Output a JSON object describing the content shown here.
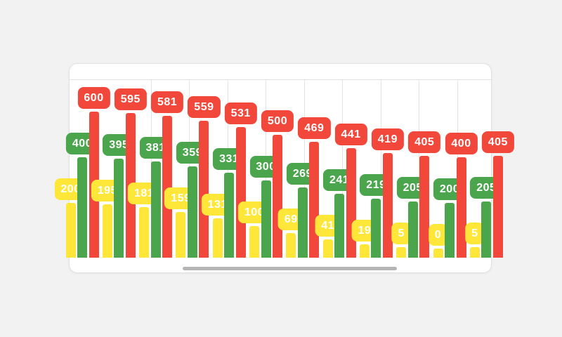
{
  "page": {
    "background_color": "#f2f2f3"
  },
  "card": {
    "background_color": "#ffffff",
    "border_color": "#e1e1e1"
  },
  "chart_data": {
    "type": "bar",
    "title": "",
    "xlabel": "",
    "ylabel": "",
    "x_tick_labels": [],
    "y_tick_labels": [],
    "series": [
      {
        "name": "yellow",
        "color": "#ffe73a",
        "values": [
          200,
          195,
          181,
          159,
          131,
          100,
          69,
          41,
          19,
          5,
          0,
          5
        ]
      },
      {
        "name": "green",
        "color": "#4aa54d",
        "values": [
          400,
          395,
          381,
          359,
          331,
          300,
          269,
          241,
          219,
          205,
          200,
          205
        ]
      },
      {
        "name": "red",
        "color": "#f2483c",
        "values": [
          600,
          595,
          581,
          559,
          531,
          500,
          469,
          441,
          419,
          405,
          400,
          405
        ]
      }
    ],
    "value_labels": "badges above each bar, white text on series color",
    "layout": {
      "legend": "none",
      "grid": "vertical lines only",
      "gridline_count": 9,
      "baseline_axis_line": false,
      "horizontal_scroll_thumb": true,
      "clipped": "first group partially clipped on left edge, last group red bar clipped on right edge"
    }
  },
  "scrollbar": {
    "color": "#b5b5b5"
  }
}
